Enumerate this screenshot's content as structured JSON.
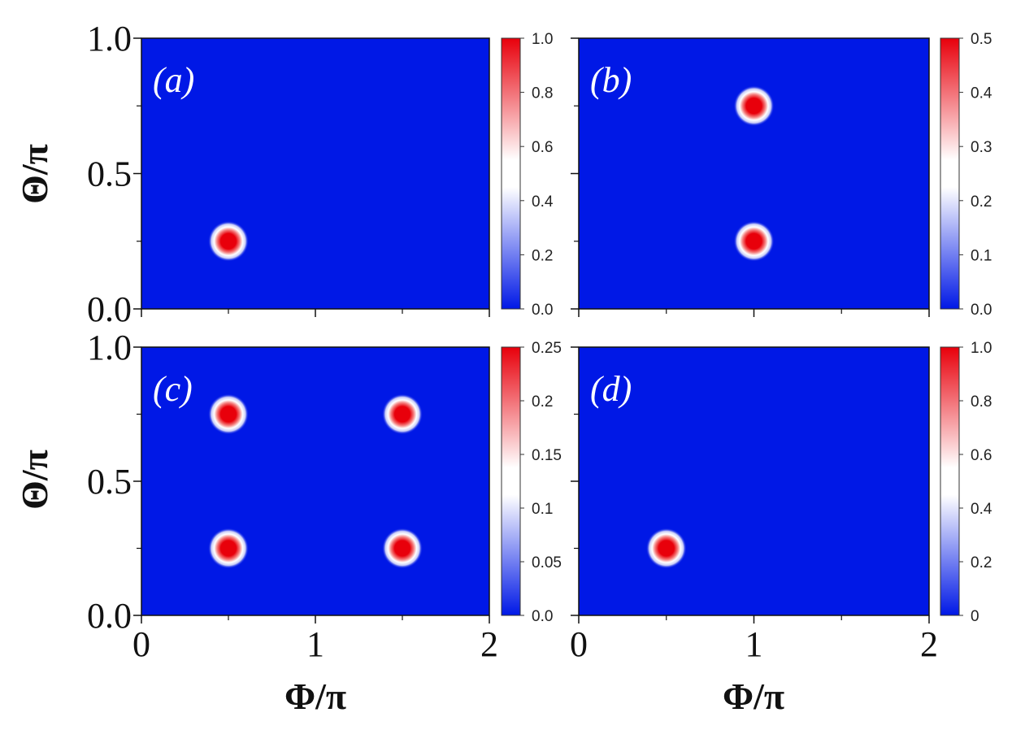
{
  "colors": {
    "low": "#0018e6",
    "mid": "#ffffff",
    "high": "#e8000b"
  },
  "x_axis": {
    "label": "Φ/π",
    "ticks": [
      "0",
      "1",
      "2"
    ],
    "range": [
      0,
      2
    ]
  },
  "y_axis": {
    "label": "Θ/π",
    "ticks": [
      "0.0",
      "0.5",
      "1.0"
    ],
    "range": [
      0,
      1
    ]
  },
  "chart_data": [
    {
      "type": "heatmap",
      "label": "(a)",
      "xlim": [
        0,
        2
      ],
      "ylim": [
        0,
        1
      ],
      "peaks": [
        {
          "phi": 0.5,
          "theta": 0.25,
          "value": 1.0
        }
      ],
      "colorbar": {
        "range": [
          0,
          1.0
        ],
        "ticks": [
          "0.0",
          "0.2",
          "0.4",
          "0.6",
          "0.8",
          "1.0"
        ]
      }
    },
    {
      "type": "heatmap",
      "label": "(b)",
      "xlim": [
        0,
        2
      ],
      "ylim": [
        0,
        1
      ],
      "peaks": [
        {
          "phi": 1.0,
          "theta": 0.75,
          "value": 0.5
        },
        {
          "phi": 1.0,
          "theta": 0.25,
          "value": 0.5
        }
      ],
      "colorbar": {
        "range": [
          0,
          0.5
        ],
        "ticks": [
          "0.0",
          "0.1",
          "0.2",
          "0.3",
          "0.4",
          "0.5"
        ]
      }
    },
    {
      "type": "heatmap",
      "label": "(c)",
      "xlim": [
        0,
        2
      ],
      "ylim": [
        0,
        1
      ],
      "peaks": [
        {
          "phi": 0.5,
          "theta": 0.75,
          "value": 0.25
        },
        {
          "phi": 1.5,
          "theta": 0.75,
          "value": 0.25
        },
        {
          "phi": 0.5,
          "theta": 0.25,
          "value": 0.25
        },
        {
          "phi": 1.5,
          "theta": 0.25,
          "value": 0.25
        }
      ],
      "colorbar": {
        "range": [
          0,
          0.25
        ],
        "ticks": [
          "0.0",
          "0.05",
          "0.1",
          "0.15",
          "0.2",
          "0.25"
        ]
      }
    },
    {
      "type": "heatmap",
      "label": "(d)",
      "xlim": [
        0,
        2
      ],
      "ylim": [
        0,
        1
      ],
      "peaks": [
        {
          "phi": 0.5,
          "theta": 0.25,
          "value": 1.0
        }
      ],
      "colorbar": {
        "range": [
          0,
          1.0
        ],
        "ticks": [
          "0",
          "0.2",
          "0.4",
          "0.6",
          "0.8",
          "1.0"
        ]
      }
    }
  ]
}
